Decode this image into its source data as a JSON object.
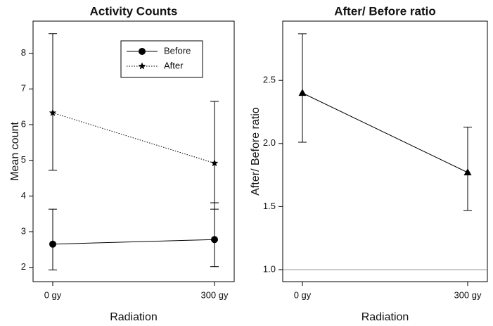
{
  "chart_data": [
    {
      "type": "line",
      "title": "Activity Counts",
      "x_label": "Radiation",
      "y_label": "Mean count",
      "categories": [
        "0 gy",
        "300 gy"
      ],
      "ylim": [
        1.6,
        8.9
      ],
      "yticks": [
        2,
        3,
        4,
        5,
        6,
        7,
        8
      ],
      "legend": "top-right",
      "series": [
        {
          "name": "Before",
          "color": "#000000",
          "marker": "circle",
          "line": "solid",
          "values": [
            2.65,
            2.78
          ],
          "upper": [
            3.63,
            3.81
          ],
          "lower": [
            1.93,
            2.02
          ]
        },
        {
          "name": "After",
          "color": "#000000",
          "marker": "star",
          "line": "dotted",
          "values": [
            6.33,
            4.92
          ],
          "upper": [
            8.55,
            6.65
          ],
          "lower": [
            4.72,
            3.63
          ]
        }
      ]
    },
    {
      "type": "line",
      "title": "After/ Before ratio",
      "x_label": "Radiation",
      "y_label": "After/ Before ratio",
      "categories": [
        "0 gy",
        "300 gy"
      ],
      "ylim": [
        0.905,
        2.97
      ],
      "yticks": [
        {
          "value": 1,
          "label": "1.0"
        },
        1.5,
        {
          "value": 2,
          "label": "2.0"
        },
        2.5
      ],
      "reference_line": 1,
      "series": [
        {
          "color": "#000000",
          "marker": "triangle",
          "line": "solid",
          "values": [
            2.4,
            1.77
          ],
          "upper": [
            2.87,
            2.13
          ],
          "lower": [
            2.01,
            1.47
          ]
        }
      ]
    }
  ]
}
